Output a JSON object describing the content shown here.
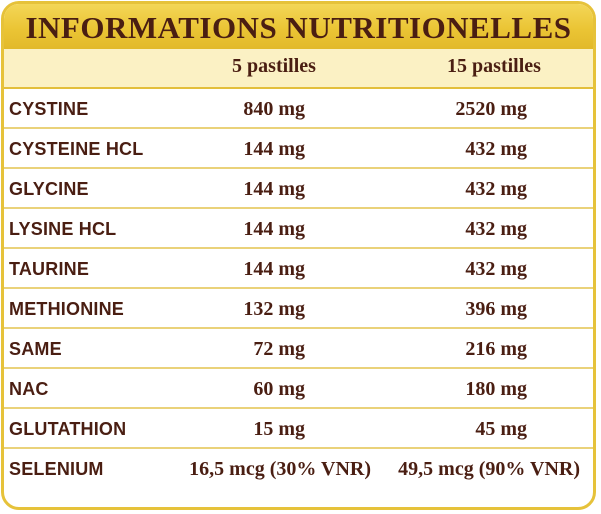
{
  "title": "INFORMATIONS NUTRITIONELLES",
  "columns": [
    "5 pastilles",
    "15 pastilles"
  ],
  "rows": [
    {
      "name": "CYSTINE",
      "v5": "840 mg",
      "v15": "2520 mg"
    },
    {
      "name": "CYSTEINE HCL",
      "v5": "144 mg",
      "v15": "432 mg"
    },
    {
      "name": "GLYCINE",
      "v5": "144 mg",
      "v15": "432 mg"
    },
    {
      "name": "LYSINE HCL",
      "v5": "144 mg",
      "v15": "432 mg"
    },
    {
      "name": "TAURINE",
      "v5": "144 mg",
      "v15": "432 mg"
    },
    {
      "name": "METHIONINE",
      "v5": "132 mg",
      "v15": "396 mg"
    },
    {
      "name": "SAME",
      "v5": "72 mg",
      "v15": "216 mg"
    },
    {
      "name": "NAC",
      "v5": "60 mg",
      "v15": "180 mg"
    },
    {
      "name": "GLUTATHION",
      "v5": "15 mg",
      "v15": "45 mg"
    },
    {
      "name": "SELENIUM",
      "v5": "16,5 mcg (30% VNR)",
      "v15": "49,5 mcg (90% VNR)"
    }
  ],
  "colors": {
    "border": "#e6c23a",
    "title_bar": "#ebc535",
    "header_row": "#fbf1c4",
    "text": "#4a1e12",
    "rule": "#ead27a"
  }
}
